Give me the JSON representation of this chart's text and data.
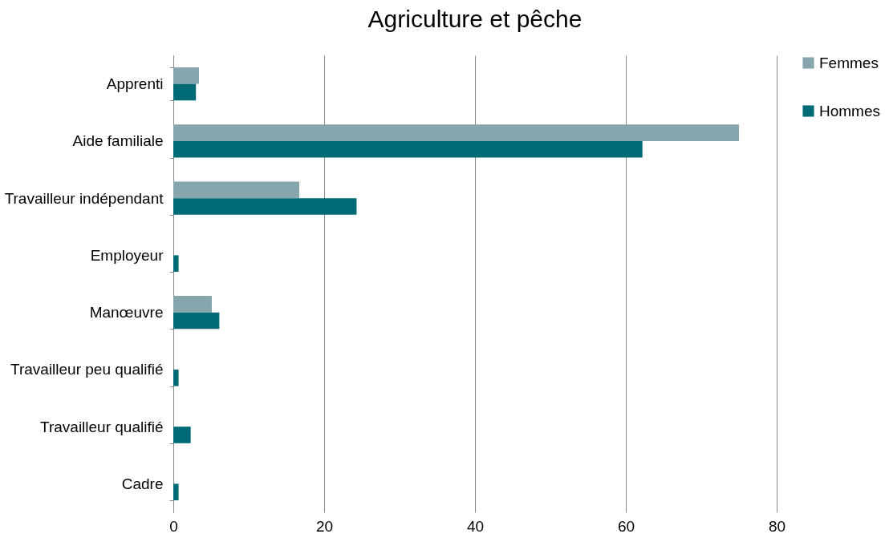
{
  "chart_data": {
    "type": "bar",
    "orientation": "horizontal",
    "title": "Agriculture et pêche",
    "categories": [
      "Apprenti",
      "Aide familiale",
      "Travailleur indépendant",
      "Employeur",
      "Manœuvre",
      "Travailleur peu qualifié",
      "Travailleur qualifié",
      "Cadre"
    ],
    "series": [
      {
        "name": "Femmes",
        "color": "#86a5ad",
        "values": [
          3.4,
          75.0,
          16.7,
          null,
          5.1,
          null,
          null,
          null
        ]
      },
      {
        "name": "Hommes",
        "color": "#006b77",
        "values": [
          3.0,
          62.2,
          24.3,
          0.7,
          6.1,
          0.7,
          2.3,
          0.7
        ]
      }
    ],
    "xlim": [
      0,
      80
    ],
    "xticks": [
      0,
      20,
      40,
      60,
      80
    ],
    "grid": "x",
    "legend": "right"
  }
}
